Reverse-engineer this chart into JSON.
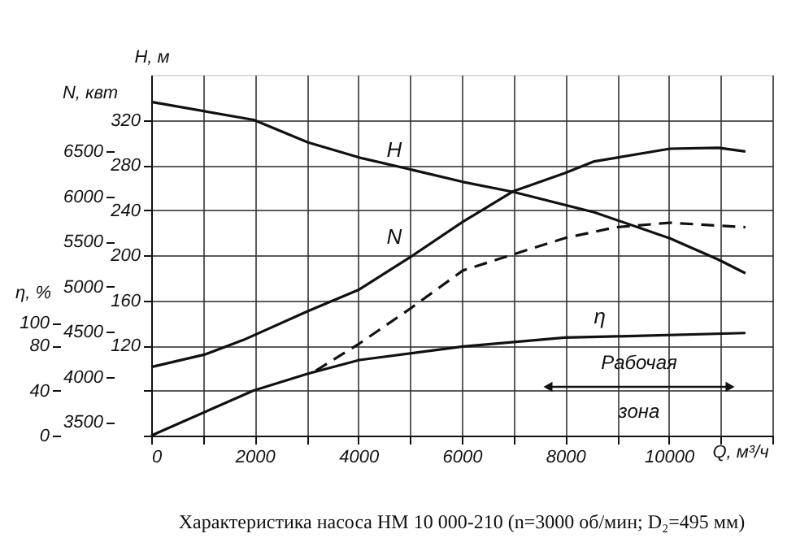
{
  "chart_data": {
    "type": "line",
    "title": "Характеристика насоса НМ 10 000-210 (n=3000 об/мин; D₂=495 мм)",
    "xlabel": "Q, м³/ч",
    "ylabel": "H, м",
    "y2label": "N, квт",
    "y3label": "η, %",
    "xlim": [
      0,
      12000
    ],
    "xticks": [
      0,
      {
        "value": 1000,
        "label": null
      },
      2000,
      {
        "value": 3000,
        "label": null
      },
      4000,
      {
        "value": 5000,
        "label": null
      },
      6000,
      {
        "value": 7000,
        "label": null
      },
      8000,
      {
        "value": 9000,
        "label": null
      },
      10000,
      {
        "value": 11000,
        "label": null
      },
      {
        "value": 12000,
        "label": null
      }
    ],
    "ylim": [
      40,
      360
    ],
    "yticks": [
      {
        "value": 40,
        "label": null
      },
      {
        "value": 80,
        "label": null
      },
      120,
      160,
      200,
      240,
      280,
      320
    ],
    "y2lim": [
      3350,
      7350
    ],
    "y2ticks": [
      3500,
      4000,
      4500,
      5000,
      5500,
      6000,
      6500
    ],
    "y3lim": [
      0,
      320
    ],
    "y3ticks": [
      0,
      40,
      80,
      100
    ],
    "grid": true,
    "series": [
      {
        "name": "H",
        "axis": "y",
        "color": "#111111",
        "line_style": "solid",
        "x": [
          0,
          1980,
          3030,
          4070,
          5010,
          6020,
          7000,
          8560,
          10020,
          10960,
          11480
        ],
        "values": [
          336,
          320,
          300,
          286,
          276,
          265,
          256,
          238,
          215,
          196,
          184
        ]
      },
      {
        "name": "N",
        "axis": "y2",
        "color": "#111111",
        "line_style": "solid",
        "x": [
          0,
          1040,
          1780,
          3030,
          4020,
          5010,
          6020,
          7000,
          7990,
          8560,
          10020,
          10960,
          11480
        ],
        "values": [
          4110,
          4250,
          4410,
          4730,
          4970,
          5330,
          5720,
          6060,
          6260,
          6390,
          6530,
          6540,
          6500
        ]
      },
      {
        "axis": "y2",
        "color": "#111111",
        "line_style": "dashed",
        "x": [
          3180,
          4020,
          5010,
          6020,
          7000,
          7990,
          8980,
          10020,
          11480
        ],
        "values": [
          4070,
          4370,
          4760,
          5180,
          5360,
          5540,
          5660,
          5710,
          5660
        ]
      },
      {
        "name": "η",
        "axis": "y3",
        "color": "#111111",
        "line_style": "solid",
        "x": [
          0,
          1980,
          3030,
          4020,
          6020,
          7990,
          8980,
          11480
        ],
        "values": [
          0,
          40,
          55,
          67,
          79,
          87,
          88,
          91
        ]
      }
    ],
    "annotations": [
      "Рабочая зона"
    ]
  }
}
